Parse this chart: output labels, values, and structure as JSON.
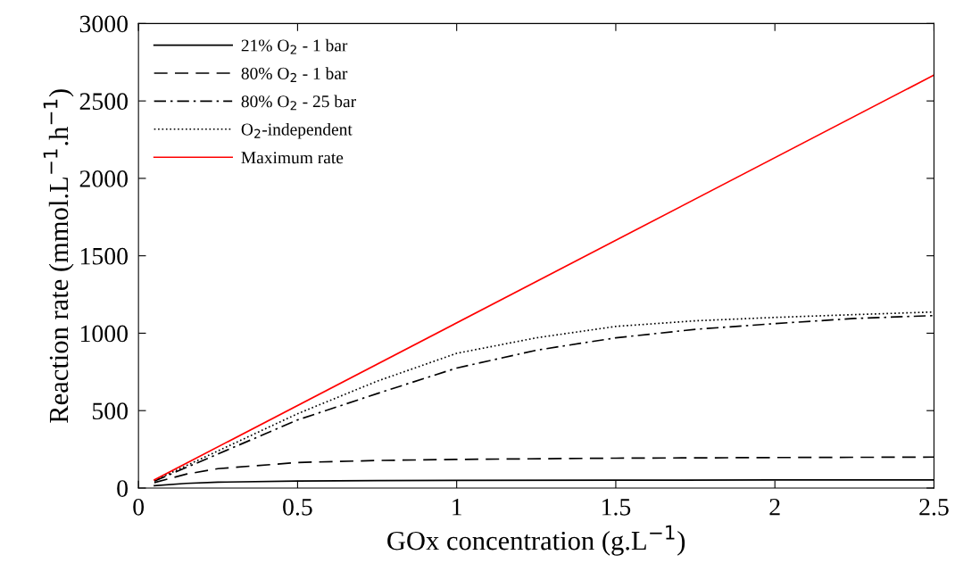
{
  "chart_data": {
    "type": "line",
    "xlabel": "GOx concentration (g.L$^{−1}$)",
    "ylabel": "Reaction rate (mmol.L$^{−1}$.h$^{−1}$)",
    "xlim": [
      0,
      2.5
    ],
    "ylim": [
      0,
      3000
    ],
    "xticks": [
      0,
      0.5,
      1,
      1.5,
      2,
      2.5
    ],
    "yticks": [
      0,
      500,
      1000,
      1500,
      2000,
      2500,
      3000
    ],
    "grid": false,
    "legend": "top left",
    "marker": "none",
    "series": [
      {
        "name": "21% O$_{2}$ - 1 bar",
        "color": "#000000",
        "line_style": "solid",
        "x": [
          0.05,
          0.15,
          0.25,
          0.5,
          0.75,
          1,
          1.5,
          2,
          2.5
        ],
        "values": [
          15,
          30,
          38,
          45,
          48,
          50,
          51,
          52,
          52
        ]
      },
      {
        "name": "80% O$_{2}$ - 1 bar",
        "color": "#000000",
        "line_style": "dashed",
        "x": [
          0.05,
          0.15,
          0.25,
          0.5,
          0.75,
          1,
          1.5,
          2,
          2.5
        ],
        "values": [
          35,
          90,
          125,
          165,
          178,
          185,
          193,
          197,
          200
        ]
      },
      {
        "name": "80% O$_{2}$ - 25 bar",
        "color": "#000000",
        "line_style": "dashdot",
        "x": [
          0.05,
          0.25,
          0.5,
          0.75,
          1,
          1.25,
          1.5,
          1.75,
          2,
          2.25,
          2.5
        ],
        "values": [
          45,
          220,
          440,
          610,
          775,
          890,
          970,
          1025,
          1062,
          1095,
          1114
        ]
      },
      {
        "name": "O$_{2}$-independent",
        "color": "#000000",
        "line_style": "dotted",
        "x": [
          0.05,
          0.25,
          0.5,
          0.75,
          1,
          1.25,
          1.5,
          1.75,
          2,
          2.25,
          2.5
        ],
        "values": [
          48,
          240,
          480,
          690,
          870,
          970,
          1044,
          1080,
          1102,
          1120,
          1137
        ]
      },
      {
        "name": "Maximum rate",
        "color": "#ff0000",
        "line_style": "solid",
        "x": [
          0.05,
          2.5
        ],
        "values": [
          53,
          2667
        ]
      }
    ]
  }
}
